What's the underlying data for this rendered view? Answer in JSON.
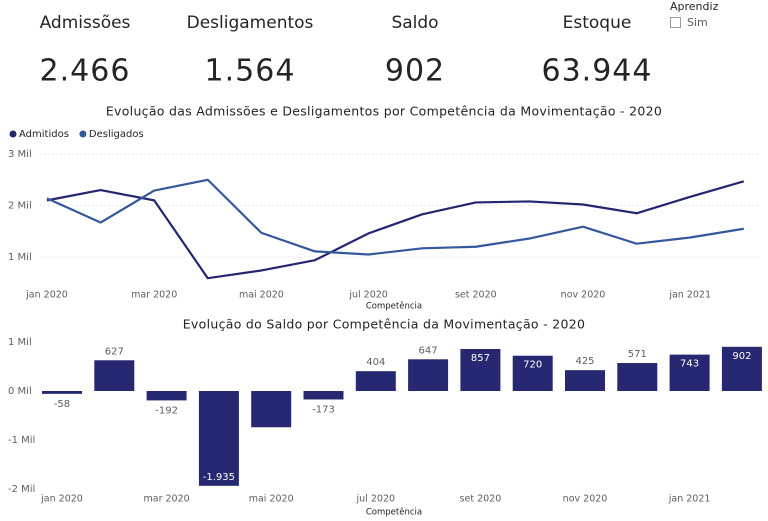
{
  "kpis": [
    {
      "label": "Admissões",
      "value": "2.466"
    },
    {
      "label": "Desligamentos",
      "value": "1.564"
    },
    {
      "label": "Saldo",
      "value": "902"
    },
    {
      "label": "Estoque",
      "value": "63.944"
    }
  ],
  "slicer": {
    "title": "Aprendiz",
    "option": "Sim"
  },
  "chart_data": [
    {
      "type": "line",
      "title": "Evolução das Admissões e Desligamentos por Competência da Movimentação - 2020",
      "x_label": "Competência",
      "categories": [
        "jan 2020",
        null,
        "mar 2020",
        null,
        "mai 2020",
        null,
        "jul 2020",
        null,
        "set 2020",
        null,
        "nov 2020",
        null,
        "jan 2021",
        null
      ],
      "series": [
        {
          "name": "Admitidos",
          "color": "#252670",
          "values": [
            2100,
            2300,
            2100,
            590,
            740,
            940,
            1460,
            1830,
            2060,
            2080,
            2020,
            1850,
            2170,
            2470
          ]
        },
        {
          "name": "Desligados",
          "color": "#34589c",
          "values": [
            2140,
            1670,
            2290,
            2500,
            1470,
            1110,
            1050,
            1170,
            1200,
            1360,
            1590,
            1260,
            1380,
            1550
          ]
        }
      ],
      "ylim": [
        400,
        3000
      ],
      "yticks": [
        {
          "value": 1000,
          "label": "1 Mil"
        },
        {
          "value": 2000,
          "label": "2 Mil"
        },
        {
          "value": 3000,
          "label": "3 Mil"
        }
      ],
      "grid": true,
      "legend": "top-left"
    },
    {
      "type": "bar",
      "title": "Evolução do Saldo por Competência da Movimentação - 2020",
      "x_label": "Competência",
      "categories": [
        "jan 2020",
        null,
        "mar 2020",
        null,
        "mai 2020",
        null,
        "jul 2020",
        null,
        "set 2020",
        null,
        "nov 2020",
        null,
        "jan 2021",
        null
      ],
      "values": [
        -58,
        627,
        -192,
        -1935,
        -740,
        -173,
        404,
        647,
        857,
        720,
        425,
        571,
        743,
        902
      ],
      "value_labels": [
        "-58",
        "627",
        "-192",
        "-1.935",
        null,
        "-173",
        "404",
        "647",
        "857",
        "720",
        "425",
        "571",
        "743",
        "902"
      ],
      "color": "#262872",
      "ylim": [
        -2000,
        1000
      ],
      "yticks": [
        {
          "value": 1000,
          "label": "1 Mil"
        },
        {
          "value": 0,
          "label": "0 Mil"
        },
        {
          "value": -1000,
          "label": "-1 Mil"
        },
        {
          "value": -2000,
          "label": "-2 Mil"
        }
      ],
      "grid": false
    }
  ]
}
